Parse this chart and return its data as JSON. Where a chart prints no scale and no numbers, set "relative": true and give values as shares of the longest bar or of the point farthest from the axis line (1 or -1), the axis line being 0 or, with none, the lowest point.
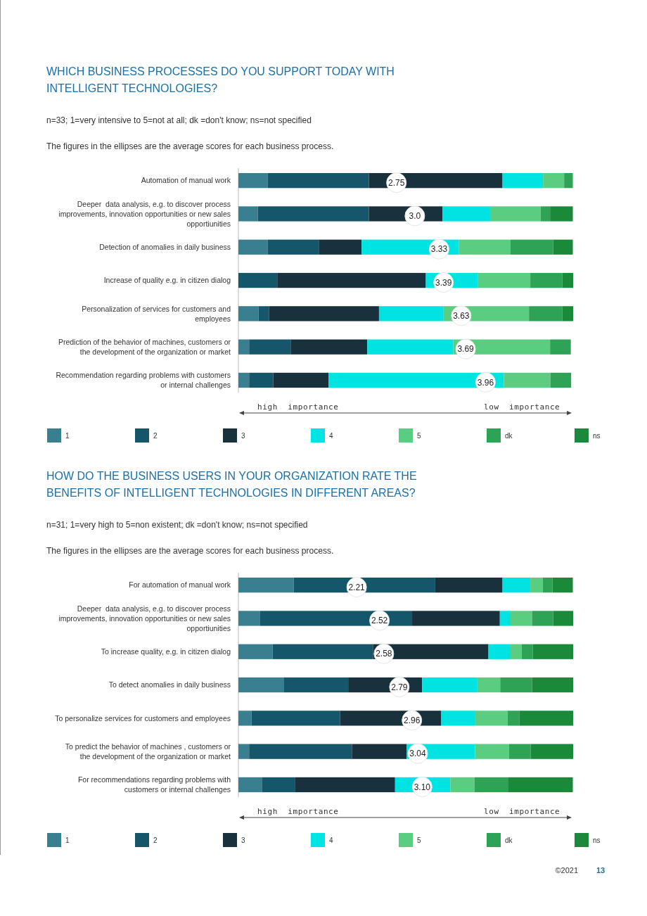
{
  "chart_data": [
    {
      "type": "bar",
      "orientation": "horizontal",
      "stacked": true,
      "relative": true,
      "legend": "bottom",
      "title": "WHICH BUSINESS PROCESSES DO YOU SUPPORT TODAY WITH INTELLIGENT TECHNOLOGIES?",
      "subtitle": "n=33; 1=very intensive to 5=not at all; dk =don't know; ns=not specified",
      "categories": [
        "Automation of manual work",
        "Deeper  data analysis, e.g. to discover process improvements, innovation opportunities or new sales opportiunities",
        "Detection of anomalies in daily business",
        "Increase of quality e.g. in citizen dialog",
        "Personalization of services for customers and employees",
        "Prediction of the behavior of machines, customers or the development of the organization or market",
        "Recommendation regarding problems with customers or internal challenges"
      ],
      "series": [
        {
          "name": "1",
          "color": "#3a7f8f",
          "values": [
            0.088,
            0.058,
            0.088,
            0,
            0.06,
            0.032,
            0.032
          ]
        },
        {
          "name": "2",
          "color": "#16566b",
          "values": [
            0.302,
            0.332,
            0.152,
            0.116,
            0.032,
            0.124,
            0.072
          ]
        },
        {
          "name": "3",
          "color": "#19313d",
          "values": [
            0.399,
            0.22,
            0.128,
            0.444,
            0.328,
            0.229,
            0.165
          ]
        },
        {
          "name": "4",
          "color": "#00e3e3",
          "values": [
            0.121,
            0.142,
            0.291,
            0.156,
            0.193,
            0.257,
            0.524
          ]
        },
        {
          "name": "5",
          "color": "#5acd80",
          "values": [
            0.063,
            0.151,
            0.154,
            0.156,
            0.255,
            0.289,
            0.139
          ]
        },
        {
          "name": "dk",
          "color": "#2ea356",
          "values": [
            0.026,
            0.028,
            0.127,
            0.096,
            0.1,
            0.062,
            0.062
          ]
        },
        {
          "name": "ns",
          "color": "#1a8a3a",
          "values": [
            0,
            0.068,
            0.059,
            0.032,
            0.032,
            0,
            0
          ]
        }
      ],
      "annotations": [
        "The figures in the ellipses are the average scores for each business process.",
        "2.75",
        "3.0",
        "3.33",
        "3.39",
        "3.63",
        "3.69",
        "3.96",
        "high  importance",
        "low  importance"
      ]
    },
    {
      "type": "bar",
      "orientation": "horizontal",
      "stacked": true,
      "relative": true,
      "legend": "bottom",
      "title": "HOW DO THE BUSINESS USERS IN YOUR ORGANIZATION RATE THE BENEFITS OF INTELLIGENT TECHNOLOGIES IN DIFFERENT AREAS?",
      "subtitle": "n=31; 1=very high to 5=non existent; dk =don't know; ns=not specified",
      "categories": [
        "For automation of manual work",
        "Deeper  data analysis, e.g. to discover process improvements, innovation opportunities or new sales opportiunities",
        "To increase quality, e.g. in citizen dialog",
        "To detect anomalies in daily business",
        "To personalize services for customers and employees",
        "To predict the behavior of machines , customers or the development of the organization or market",
        "For recommendations regarding problems with customers or internal challenges"
      ],
      "series": [
        {
          "name": "1",
          "color": "#3a7f8f",
          "values": [
            0.165,
            0.065,
            0.102,
            0.135,
            0.039,
            0.032,
            0.07
          ]
        },
        {
          "name": "2",
          "color": "#16566b",
          "values": [
            0.423,
            0.454,
            0.3,
            0.193,
            0.265,
            0.307,
            0.1
          ]
        },
        {
          "name": "3",
          "color": "#19313d",
          "values": [
            0.201,
            0.262,
            0.345,
            0.221,
            0.302,
            0.164,
            0.298
          ]
        },
        {
          "name": "4",
          "color": "#00e3e3",
          "values": [
            0.083,
            0.03,
            0.064,
            0.165,
            0.1,
            0.204,
            0.165
          ]
        },
        {
          "name": "5",
          "color": "#5acd80",
          "values": [
            0.037,
            0.066,
            0.035,
            0.068,
            0.098,
            0.101,
            0.072
          ]
        },
        {
          "name": "dk",
          "color": "#2ea356",
          "values": [
            0.029,
            0.063,
            0.033,
            0.095,
            0.035,
            0.065,
            0.1
          ]
        },
        {
          "name": "ns",
          "color": "#1a8a3a",
          "values": [
            0.061,
            0.06,
            0.121,
            0.123,
            0.161,
            0.127,
            0.194
          ]
        }
      ],
      "annotations": [
        "The figures in the ellipses are the average scores for each business process.",
        "2.21",
        "2.52",
        "2.58",
        "2.79",
        "2.96",
        "3.04",
        "3.10",
        "high  importance",
        "low  importance",
        "©2021",
        "13"
      ]
    }
  ]
}
